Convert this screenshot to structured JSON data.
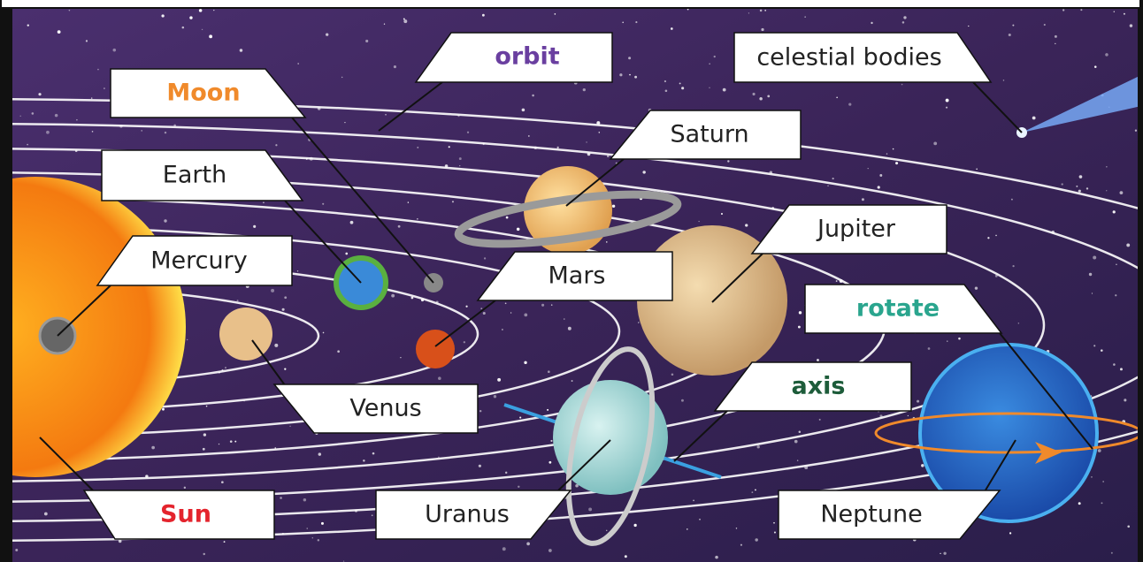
{
  "labels": [
    "orbit",
    "celestial bodies",
    "Moon",
    "Saturn",
    "Earth",
    "Jupiter",
    "Mercury",
    "Mars",
    "rotate",
    "axis",
    "Venus",
    "Sun",
    "Uranus",
    "Neptune"
  ]
}
